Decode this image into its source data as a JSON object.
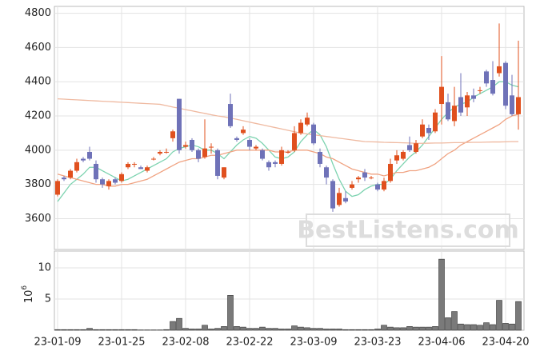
{
  "chart_data": [
    {
      "type": "candlestick",
      "open": [
        3740,
        3840,
        3840,
        3880,
        3950,
        3990,
        3920,
        3830,
        3790,
        3830,
        3820,
        3900,
        3920,
        3900,
        3880,
        3950,
        3980,
        3990,
        4070,
        4300,
        4020,
        4060,
        4000,
        3960,
        4020,
        4000,
        3840,
        4270,
        4070,
        4100,
        4060,
        4010,
        4000,
        3930,
        3930,
        3920,
        3990,
        4000,
        4100,
        4150,
        4150,
        3990,
        3900,
        3820,
        3680,
        3720,
        3780,
        3830,
        3870,
        3840,
        3800,
        3770,
        3820,
        3940,
        3950,
        4030,
        3990,
        4080,
        4130,
        4110,
        4270,
        4280,
        4170,
        4310,
        4250,
        4320,
        4350,
        4460,
        4410,
        4450,
        4510,
        4320,
        4210
      ],
      "high": [
        3830,
        3850,
        3890,
        3950,
        3960,
        4020,
        3940,
        3840,
        3830,
        3840,
        3870,
        3930,
        3930,
        3910,
        3910,
        3960,
        4000,
        4010,
        4120,
        4300,
        4050,
        4070,
        4010,
        4180,
        4040,
        4010,
        3900,
        4330,
        4080,
        4140,
        4070,
        4030,
        4010,
        3940,
        3940,
        4020,
        4000,
        4140,
        4180,
        4220,
        4160,
        4010,
        3910,
        3830,
        3780,
        3760,
        3820,
        3850,
        3890,
        3850,
        3810,
        3840,
        3950,
        4000,
        4000,
        4080,
        4060,
        4180,
        4150,
        4240,
        4550,
        4330,
        4370,
        4450,
        4340,
        4360,
        4370,
        4470,
        4520,
        4740,
        4520,
        4440,
        4640
      ],
      "low": [
        3730,
        3820,
        3830,
        3870,
        3930,
        3940,
        3810,
        3780,
        3770,
        3800,
        3810,
        3890,
        3900,
        3890,
        3870,
        3940,
        3970,
        3980,
        4050,
        3980,
        4010,
        3990,
        3930,
        3950,
        3980,
        3830,
        3830,
        4130,
        4050,
        4090,
        4000,
        4000,
        3940,
        3880,
        3900,
        3910,
        3980,
        3990,
        4090,
        4140,
        4030,
        3900,
        3800,
        3640,
        3670,
        3690,
        3770,
        3810,
        3820,
        3830,
        3760,
        3760,
        3810,
        3920,
        3940,
        3990,
        3980,
        4070,
        4060,
        4100,
        4150,
        4170,
        4140,
        4200,
        4200,
        4280,
        4330,
        4370,
        4320,
        4430,
        4240,
        4200,
        4120
      ],
      "close": [
        3820,
        3830,
        3880,
        3930,
        3940,
        3950,
        3830,
        3800,
        3820,
        3810,
        3860,
        3920,
        3920,
        3890,
        3900,
        3950,
        3990,
        3990,
        4110,
        4000,
        4030,
        4000,
        3950,
        4010,
        4020,
        3850,
        3900,
        4140,
        4060,
        4120,
        4020,
        4020,
        3950,
        3900,
        3920,
        4000,
        3990,
        4100,
        4160,
        4190,
        4040,
        3920,
        3840,
        3660,
        3750,
        3700,
        3800,
        3840,
        3840,
        3840,
        3770,
        3820,
        3920,
        3970,
        3990,
        4000,
        4040,
        4150,
        4100,
        4220,
        4370,
        4180,
        4260,
        4220,
        4320,
        4300,
        4350,
        4390,
        4330,
        4490,
        4260,
        4210,
        4310
      ],
      "up_color": "#e0501e",
      "down_color": "#6f72b8",
      "series": [
        {
          "color": "#7dd3b0",
          "values": [
            3700,
            3750,
            3800,
            3830,
            3860,
            3900,
            3900,
            3880,
            3860,
            3840,
            3820,
            3830,
            3850,
            3870,
            3890,
            3910,
            3930,
            3950,
            3990,
            4010,
            4020,
            4030,
            4020,
            4000,
            4000,
            3980,
            3950,
            3990,
            4030,
            4060,
            4080,
            4070,
            4040,
            4000,
            3960,
            3950,
            3960,
            3990,
            4050,
            4090,
            4120,
            4090,
            4020,
            3920,
            3830,
            3760,
            3730,
            3740,
            3770,
            3790,
            3800,
            3800,
            3830,
            3880,
            3920,
            3960,
            3990,
            4030,
            4080,
            4130,
            4180,
            4220,
            4250,
            4270,
            4280,
            4310,
            4330,
            4350,
            4370,
            4400,
            4400,
            4380,
            4370
          ]
        },
        {
          "color": "#f0a382",
          "values": [
            3860,
            3850,
            3840,
            3830,
            3820,
            3810,
            3800,
            3800,
            3790,
            3790,
            3800,
            3800,
            3810,
            3820,
            3830,
            3850,
            3870,
            3890,
            3910,
            3930,
            3940,
            3950,
            3950,
            3960,
            3970,
            3970,
            3980,
            3990,
            4000,
            4000,
            4000,
            4000,
            4000,
            4000,
            3990,
            3990,
            3990,
            4000,
            4000,
            4000,
            3990,
            3980,
            3960,
            3950,
            3930,
            3910,
            3890,
            3880,
            3870,
            3860,
            3860,
            3850,
            3860,
            3870,
            3870,
            3880,
            3880,
            3890,
            3900,
            3920,
            3950,
            3980,
            4000,
            4030,
            4050,
            4070,
            4090,
            4110,
            4130,
            4150,
            4180,
            4200,
            4210
          ]
        },
        {
          "color": "#efb9a0",
          "values": [
            4300,
            4298,
            4296,
            4294,
            4292,
            4290,
            4288,
            4286,
            4284,
            4282,
            4280,
            4278,
            4276,
            4274,
            4272,
            4270,
            4268,
            4260,
            4252,
            4245,
            4237,
            4230,
            4222,
            4215,
            4207,
            4200,
            4195,
            4188,
            4180,
            4172,
            4164,
            4156,
            4148,
            4140,
            4132,
            4124,
            4116,
            4108,
            4100,
            4095,
            4090,
            4085,
            4080,
            4075,
            4070,
            4065,
            4060,
            4055,
            4050,
            4049,
            4048,
            4046,
            4045,
            4044,
            4043,
            4042,
            4040,
            4040,
            4041,
            4042,
            4042,
            4043,
            4044,
            4044,
            4045,
            4046,
            4046,
            4047,
            4048,
            4048,
            4049,
            4050,
            4050
          ]
        }
      ],
      "ylim": [
        3420,
        4840
      ],
      "yticks": [
        3600,
        3800,
        4000,
        4200,
        4400,
        4600,
        4800
      ],
      "grid": true,
      "watermark": "BestListens.com"
    },
    {
      "type": "bar",
      "categories": [
        "23-01-09",
        null,
        null,
        null,
        null,
        null,
        null,
        null,
        null,
        null,
        "23-01-25",
        null,
        null,
        null,
        null,
        null,
        null,
        null,
        null,
        null,
        "23-02-08",
        null,
        null,
        null,
        null,
        null,
        null,
        null,
        null,
        null,
        "23-02-22",
        null,
        null,
        null,
        null,
        null,
        null,
        null,
        null,
        null,
        "23-03-09",
        null,
        null,
        null,
        null,
        null,
        null,
        null,
        null,
        null,
        "23-03-23",
        null,
        null,
        null,
        null,
        null,
        null,
        null,
        null,
        null,
        "23-04-06",
        null,
        null,
        null,
        null,
        null,
        null,
        null,
        null,
        null,
        "23-04-20",
        null,
        null
      ],
      "values": [
        0.1,
        0.1,
        0.1,
        0.1,
        0.1,
        0.3,
        0.1,
        0.1,
        0.1,
        0.1,
        0.1,
        0.1,
        0.1,
        0.05,
        0.05,
        0.05,
        0.05,
        0.1,
        1.4,
        1.9,
        0.3,
        0.2,
        0.2,
        0.8,
        0.2,
        0.3,
        0.6,
        5.6,
        0.6,
        0.5,
        0.3,
        0.3,
        0.5,
        0.3,
        0.3,
        0.2,
        0.2,
        0.7,
        0.5,
        0.4,
        0.3,
        0.3,
        0.2,
        0.2,
        0.2,
        0.1,
        0.1,
        0.1,
        0.1,
        0.1,
        0.2,
        0.8,
        0.5,
        0.4,
        0.4,
        0.6,
        0.5,
        0.5,
        0.5,
        0.6,
        11.4,
        2.0,
        3.0,
        1.0,
        0.9,
        0.9,
        0.8,
        1.2,
        0.9,
        4.8,
        1.1,
        1.0,
        4.6
      ],
      "color": "#7a7a7a",
      "ylim": [
        0,
        12.7
      ],
      "yticks": [
        5,
        10
      ],
      "grid": true,
      "ylabel": "10",
      "ylabel_exponent": "6"
    }
  ]
}
